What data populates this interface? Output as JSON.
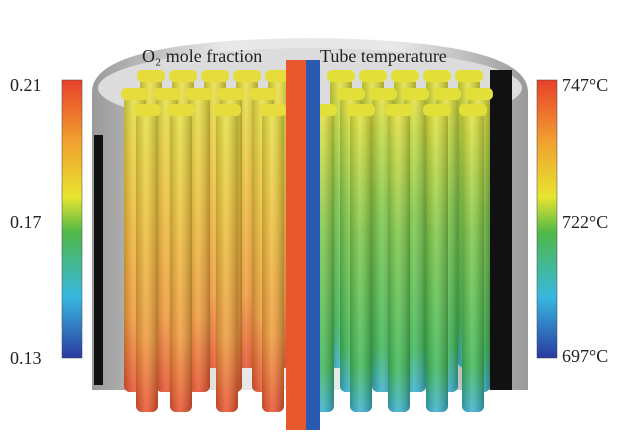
{
  "left_colorbar": {
    "title": "O₂ mole fraction",
    "ticks": [
      "0.21",
      "0.17",
      "0.13"
    ]
  },
  "right_colorbar": {
    "title": "Tube temperature",
    "ticks": [
      "747°C",
      "722°C",
      "697°C"
    ]
  }
}
